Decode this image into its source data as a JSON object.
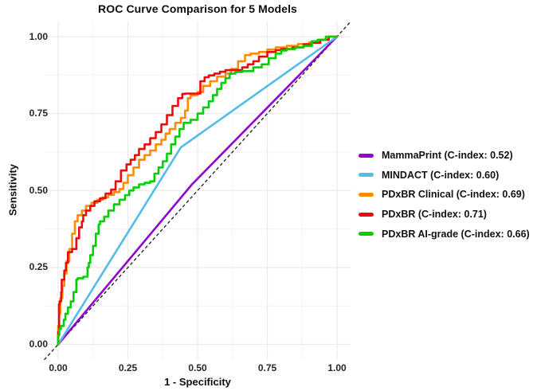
{
  "figure": {
    "title": "ROC Curve Comparison for 5 Models",
    "background": "#ffffff"
  },
  "chart_data": {
    "type": "line",
    "subtype": "roc-curves",
    "title": "ROC Curve Comparison for 5 Models",
    "xlabel": "1 - Specificity",
    "ylabel": "Sensitivity",
    "xlim": [
      -0.05,
      1.05
    ],
    "ylim": [
      -0.05,
      1.05
    ],
    "x_ticks": {
      "values": [
        0,
        0.25,
        0.5,
        0.75,
        1
      ],
      "labels": [
        "0.00",
        "0.25",
        "0.50",
        "0.75",
        "1.00"
      ]
    },
    "y_ticks": {
      "values": [
        0,
        0.25,
        0.5,
        0.75,
        1
      ],
      "labels": [
        "0.00",
        "0.25",
        "0.50",
        "0.75",
        "1.00"
      ]
    },
    "minor_ticks": [
      0.125,
      0.375,
      0.625,
      0.875
    ],
    "grid": true,
    "minor_grid": true,
    "grid_color": "#ebebeb",
    "minor_grid_color": "#f3f3f3",
    "legend_position": "right",
    "reference_line": {
      "name": "chance-diagonal",
      "style": "dashed",
      "color": "#1a1a1a",
      "from": [
        -0.05,
        -0.05
      ],
      "to": [
        1.05,
        1.05
      ]
    },
    "series": [
      {
        "id": "mammaprint",
        "name": "MammaPrint (C-index: 0.52)",
        "c_index": 0.52,
        "color": "#9400D3",
        "interp": "linear",
        "points": [
          [
            0,
            0
          ],
          [
            0.48,
            0.52
          ],
          [
            1,
            1
          ]
        ]
      },
      {
        "id": "mindact",
        "name": "MINDACT (C-index: 0.60)",
        "c_index": 0.6,
        "color": "#54BCE8",
        "interp": "linear",
        "points": [
          [
            0,
            0
          ],
          [
            0.44,
            0.64
          ],
          [
            1,
            1
          ]
        ]
      },
      {
        "id": "pdxbr-clinical",
        "name": "PDxBR Clinical (C-index: 0.69)",
        "c_index": 0.69,
        "color": "#FF8C00",
        "interp": "step",
        "points": [
          [
            0,
            0
          ],
          [
            0.004,
            0.06
          ],
          [
            0.008,
            0.1
          ],
          [
            0.015,
            0.15
          ],
          [
            0.022,
            0.19
          ],
          [
            0.03,
            0.23
          ],
          [
            0.04,
            0.27
          ],
          [
            0.05,
            0.31
          ],
          [
            0.06,
            0.36
          ],
          [
            0.07,
            0.4
          ],
          [
            0.085,
            0.42
          ],
          [
            0.1,
            0.435
          ],
          [
            0.12,
            0.45
          ],
          [
            0.14,
            0.46
          ],
          [
            0.16,
            0.47
          ],
          [
            0.18,
            0.478
          ],
          [
            0.2,
            0.486
          ],
          [
            0.22,
            0.495
          ],
          [
            0.234,
            0.505
          ],
          [
            0.25,
            0.525
          ],
          [
            0.27,
            0.55
          ],
          [
            0.29,
            0.575
          ],
          [
            0.31,
            0.6
          ],
          [
            0.33,
            0.615
          ],
          [
            0.35,
            0.63
          ],
          [
            0.37,
            0.65
          ],
          [
            0.385,
            0.665
          ],
          [
            0.4,
            0.685
          ],
          [
            0.42,
            0.7
          ],
          [
            0.44,
            0.72
          ],
          [
            0.455,
            0.736
          ],
          [
            0.465,
            0.76
          ],
          [
            0.475,
            0.8
          ],
          [
            0.5,
            0.81
          ],
          [
            0.52,
            0.82
          ],
          [
            0.545,
            0.84
          ],
          [
            0.57,
            0.855
          ],
          [
            0.6,
            0.87
          ],
          [
            0.62,
            0.88
          ],
          [
            0.645,
            0.895
          ],
          [
            0.67,
            0.92
          ],
          [
            0.69,
            0.94
          ],
          [
            0.72,
            0.945
          ],
          [
            0.75,
            0.95
          ],
          [
            0.78,
            0.958
          ],
          [
            0.82,
            0.965
          ],
          [
            0.86,
            0.97
          ],
          [
            0.9,
            0.976
          ],
          [
            0.94,
            0.982
          ],
          [
            0.97,
            0.99
          ],
          [
            1,
            1
          ]
        ]
      },
      {
        "id": "pdxbr",
        "name": "PDxBR (C-index: 0.71)",
        "c_index": 0.71,
        "color": "#EE0A0A",
        "interp": "step",
        "points": [
          [
            0,
            0
          ],
          [
            0.003,
            0.04
          ],
          [
            0.005,
            0.13
          ],
          [
            0.011,
            0.14
          ],
          [
            0.013,
            0.17
          ],
          [
            0.022,
            0.21
          ],
          [
            0.028,
            0.24
          ],
          [
            0.035,
            0.265
          ],
          [
            0.05,
            0.3
          ],
          [
            0.065,
            0.31
          ],
          [
            0.075,
            0.345
          ],
          [
            0.085,
            0.38
          ],
          [
            0.09,
            0.4
          ],
          [
            0.1,
            0.42
          ],
          [
            0.115,
            0.435
          ],
          [
            0.13,
            0.45
          ],
          [
            0.15,
            0.465
          ],
          [
            0.17,
            0.475
          ],
          [
            0.19,
            0.49
          ],
          [
            0.206,
            0.503
          ],
          [
            0.225,
            0.53
          ],
          [
            0.245,
            0.565
          ],
          [
            0.26,
            0.585
          ],
          [
            0.275,
            0.6
          ],
          [
            0.29,
            0.615
          ],
          [
            0.31,
            0.635
          ],
          [
            0.33,
            0.65
          ],
          [
            0.35,
            0.67
          ],
          [
            0.37,
            0.69
          ],
          [
            0.39,
            0.715
          ],
          [
            0.41,
            0.745
          ],
          [
            0.43,
            0.775
          ],
          [
            0.445,
            0.8
          ],
          [
            0.455,
            0.814
          ],
          [
            0.51,
            0.815
          ],
          [
            0.525,
            0.855
          ],
          [
            0.54,
            0.868
          ],
          [
            0.56,
            0.874
          ],
          [
            0.58,
            0.88
          ],
          [
            0.6,
            0.886
          ],
          [
            0.625,
            0.891
          ],
          [
            0.66,
            0.891
          ],
          [
            0.68,
            0.9
          ],
          [
            0.7,
            0.91
          ],
          [
            0.72,
            0.92
          ],
          [
            0.75,
            0.935
          ],
          [
            0.78,
            0.95
          ],
          [
            0.8,
            0.956
          ],
          [
            0.84,
            0.96
          ],
          [
            0.88,
            0.965
          ],
          [
            0.91,
            0.975
          ],
          [
            0.94,
            0.98
          ],
          [
            0.97,
            0.99
          ],
          [
            1,
            1
          ]
        ]
      },
      {
        "id": "pdxbr-ai-grade",
        "name": "PDxBR AI-grade (C-index: 0.66)",
        "c_index": 0.66,
        "color": "#00D000",
        "interp": "step",
        "points": [
          [
            0,
            0
          ],
          [
            0.004,
            0.03
          ],
          [
            0.01,
            0.05
          ],
          [
            0.02,
            0.06
          ],
          [
            0.026,
            0.08
          ],
          [
            0.035,
            0.1
          ],
          [
            0.045,
            0.12
          ],
          [
            0.055,
            0.14
          ],
          [
            0.065,
            0.17
          ],
          [
            0.07,
            0.21
          ],
          [
            0.09,
            0.215
          ],
          [
            0.105,
            0.22
          ],
          [
            0.11,
            0.25
          ],
          [
            0.115,
            0.265
          ],
          [
            0.125,
            0.29
          ],
          [
            0.135,
            0.32
          ],
          [
            0.145,
            0.36
          ],
          [
            0.15,
            0.39
          ],
          [
            0.165,
            0.4
          ],
          [
            0.18,
            0.415
          ],
          [
            0.2,
            0.435
          ],
          [
            0.22,
            0.455
          ],
          [
            0.24,
            0.47
          ],
          [
            0.255,
            0.485
          ],
          [
            0.27,
            0.5
          ],
          [
            0.29,
            0.51
          ],
          [
            0.31,
            0.52
          ],
          [
            0.33,
            0.525
          ],
          [
            0.345,
            0.53
          ],
          [
            0.36,
            0.555
          ],
          [
            0.375,
            0.575
          ],
          [
            0.39,
            0.595
          ],
          [
            0.405,
            0.62
          ],
          [
            0.42,
            0.65
          ],
          [
            0.435,
            0.675
          ],
          [
            0.45,
            0.7
          ],
          [
            0.475,
            0.72
          ],
          [
            0.5,
            0.73
          ],
          [
            0.52,
            0.75
          ],
          [
            0.54,
            0.77
          ],
          [
            0.555,
            0.79
          ],
          [
            0.57,
            0.81
          ],
          [
            0.585,
            0.83
          ],
          [
            0.6,
            0.85
          ],
          [
            0.615,
            0.865
          ],
          [
            0.635,
            0.88
          ],
          [
            0.66,
            0.885
          ],
          [
            0.7,
            0.888
          ],
          [
            0.73,
            0.9
          ],
          [
            0.755,
            0.91
          ],
          [
            0.78,
            0.93
          ],
          [
            0.8,
            0.945
          ],
          [
            0.82,
            0.955
          ],
          [
            0.85,
            0.96
          ],
          [
            0.88,
            0.965
          ],
          [
            0.91,
            0.97
          ],
          [
            0.93,
            0.985
          ],
          [
            0.96,
            0.99
          ],
          [
            1,
            1
          ]
        ]
      }
    ]
  }
}
